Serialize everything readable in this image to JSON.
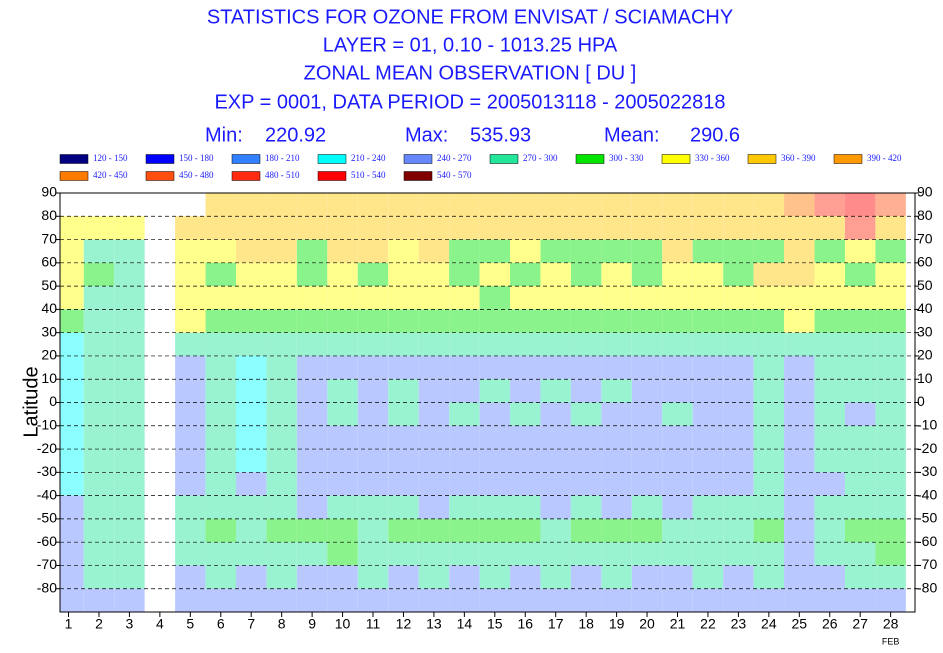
{
  "chart_data": {
    "type": "heatmap",
    "title_lines": [
      "STATISTICS FOR OZONE FROM ENVISAT / SCIAMACHY",
      "LAYER = 01, 0.10 - 1013.25 HPA",
      "ZONAL MEAN OBSERVATION [ DU ]",
      "EXP = 0001, DATA PERIOD = 2005013118 - 2005022818"
    ],
    "stats": [
      {
        "label": "Min:",
        "value": 220.92
      },
      {
        "label": "Max:",
        "value": 535.93
      },
      {
        "label": "Mean:",
        "value": 290.6
      }
    ],
    "legend": {
      "bounds": [
        120,
        150,
        180,
        210,
        240,
        270,
        300,
        330,
        360,
        390,
        420,
        450,
        480,
        510,
        540,
        570
      ],
      "labels": [
        "120 - 150",
        "150 - 180",
        "180 - 210",
        "210 - 240",
        "240 - 270",
        "270 - 300",
        "300 - 330",
        "330 - 360",
        "360 - 390",
        "390 - 420",
        "420 - 450",
        "450 - 480",
        "480 - 510",
        "510 - 540",
        "540 - 570"
      ],
      "colors": [
        "#000080",
        "#0000ff",
        "#3080ff",
        "#00ffff",
        "#6688ff",
        "#22e699",
        "#00e600",
        "#ffff00",
        "#ffc800",
        "#ff9900",
        "#ff7a00",
        "#ff5010",
        "#ff2a10",
        "#ff0000",
        "#800000"
      ]
    },
    "ylabel": "Latitude",
    "x": [
      1,
      2,
      3,
      4,
      5,
      6,
      7,
      8,
      9,
      10,
      11,
      12,
      13,
      14,
      15,
      16,
      17,
      18,
      19,
      20,
      21,
      22,
      23,
      24,
      25,
      26,
      27,
      28
    ],
    "x_label_colors": [
      "#000",
      "#000",
      "#000",
      "#000",
      "#000",
      "#e00000",
      "#000",
      "#000",
      "#000",
      "#000",
      "#000",
      "#000",
      "#e00000",
      "#000",
      "#000",
      "#000",
      "#000",
      "#000",
      "#000",
      "#e00000",
      "#000",
      "#000",
      "#000",
      "#000",
      "#000",
      "#000",
      "#e00000",
      "#000"
    ],
    "x_sublabel": "FEB",
    "xlim": [
      0.72,
      28.8
    ],
    "y": [
      85,
      75,
      65,
      55,
      45,
      35,
      25,
      15,
      5,
      -5,
      -15,
      -25,
      -35,
      -45,
      -55,
      -65,
      -75,
      -85
    ],
    "ylim": [
      -90,
      90
    ],
    "yticks": [
      -80,
      -70,
      -60,
      -50,
      -40,
      -30,
      -20,
      -10,
      0,
      10,
      20,
      30,
      40,
      50,
      60,
      70,
      80,
      90
    ],
    "z": [
      [
        null,
        null,
        null,
        null,
        null,
        365,
        365,
        365,
        365,
        365,
        365,
        365,
        365,
        365,
        365,
        365,
        365,
        365,
        365,
        365,
        365,
        365,
        365,
        365,
        420,
        480,
        510,
        450
      ],
      [
        345,
        345,
        345,
        null,
        375,
        375,
        375,
        375,
        375,
        375,
        375,
        375,
        375,
        375,
        375,
        375,
        375,
        375,
        375,
        375,
        375,
        375,
        375,
        375,
        375,
        375,
        480,
        375
      ],
      [
        345,
        285,
        285,
        null,
        345,
        345,
        375,
        375,
        315,
        375,
        375,
        345,
        375,
        315,
        315,
        345,
        315,
        315,
        315,
        315,
        375,
        315,
        315,
        315,
        375,
        315,
        345,
        315
      ],
      [
        345,
        315,
        285,
        null,
        345,
        315,
        345,
        345,
        315,
        345,
        315,
        345,
        345,
        315,
        345,
        315,
        345,
        315,
        345,
        315,
        345,
        345,
        315,
        375,
        375,
        345,
        315,
        345
      ],
      [
        345,
        285,
        285,
        null,
        345,
        345,
        345,
        345,
        345,
        345,
        345,
        345,
        345,
        345,
        315,
        345,
        345,
        345,
        345,
        345,
        345,
        345,
        345,
        345,
        345,
        345,
        345,
        345
      ],
      [
        315,
        285,
        285,
        null,
        345,
        315,
        315,
        315,
        315,
        315,
        315,
        315,
        315,
        315,
        315,
        315,
        315,
        315,
        315,
        315,
        315,
        315,
        315,
        315,
        345,
        315,
        315,
        315
      ],
      [
        225,
        285,
        285,
        null,
        285,
        285,
        285,
        285,
        285,
        285,
        285,
        285,
        285,
        285,
        285,
        285,
        285,
        285,
        285,
        285,
        285,
        285,
        285,
        285,
        285,
        285,
        285,
        285
      ],
      [
        225,
        285,
        285,
        null,
        255,
        285,
        225,
        285,
        255,
        255,
        255,
        255,
        255,
        255,
        255,
        255,
        255,
        255,
        255,
        255,
        255,
        255,
        255,
        285,
        255,
        285,
        285,
        285
      ],
      [
        225,
        285,
        285,
        null,
        255,
        285,
        225,
        285,
        255,
        285,
        255,
        285,
        255,
        255,
        285,
        255,
        285,
        255,
        285,
        255,
        255,
        255,
        255,
        285,
        255,
        285,
        285,
        285
      ],
      [
        225,
        285,
        285,
        null,
        255,
        285,
        225,
        285,
        255,
        285,
        255,
        285,
        255,
        285,
        255,
        285,
        255,
        285,
        255,
        255,
        285,
        255,
        255,
        285,
        255,
        285,
        255,
        285
      ],
      [
        225,
        285,
        285,
        null,
        255,
        285,
        225,
        285,
        255,
        255,
        255,
        255,
        255,
        255,
        255,
        255,
        255,
        255,
        255,
        255,
        255,
        255,
        255,
        285,
        255,
        285,
        285,
        285
      ],
      [
        225,
        285,
        285,
        null,
        255,
        285,
        225,
        285,
        255,
        255,
        255,
        255,
        255,
        255,
        255,
        255,
        255,
        255,
        255,
        255,
        255,
        255,
        255,
        285,
        255,
        285,
        285,
        285
      ],
      [
        225,
        285,
        285,
        null,
        255,
        285,
        255,
        285,
        255,
        255,
        255,
        255,
        255,
        255,
        255,
        255,
        255,
        255,
        255,
        255,
        255,
        255,
        255,
        285,
        255,
        255,
        285,
        285
      ],
      [
        255,
        285,
        285,
        null,
        285,
        285,
        285,
        285,
        255,
        285,
        285,
        285,
        255,
        285,
        285,
        285,
        255,
        285,
        255,
        285,
        255,
        285,
        285,
        285,
        255,
        285,
        285,
        285
      ],
      [
        255,
        285,
        285,
        null,
        285,
        315,
        285,
        315,
        315,
        315,
        285,
        315,
        315,
        315,
        315,
        315,
        285,
        315,
        315,
        315,
        285,
        285,
        285,
        315,
        255,
        285,
        315,
        315
      ],
      [
        255,
        285,
        285,
        null,
        285,
        285,
        285,
        285,
        285,
        315,
        285,
        285,
        285,
        285,
        285,
        285,
        285,
        285,
        285,
        285,
        285,
        285,
        285,
        285,
        255,
        285,
        285,
        315
      ],
      [
        255,
        285,
        285,
        null,
        255,
        285,
        255,
        285,
        255,
        255,
        285,
        255,
        285,
        255,
        285,
        255,
        285,
        255,
        285,
        255,
        255,
        285,
        255,
        285,
        255,
        255,
        285,
        285
      ],
      [
        255,
        255,
        255,
        null,
        255,
        255,
        255,
        255,
        255,
        255,
        255,
        255,
        255,
        255,
        255,
        255,
        255,
        255,
        255,
        255,
        255,
        255,
        255,
        255,
        255,
        255,
        255,
        255
      ]
    ],
    "cell_opacity": 0.45,
    "grid": true
  }
}
